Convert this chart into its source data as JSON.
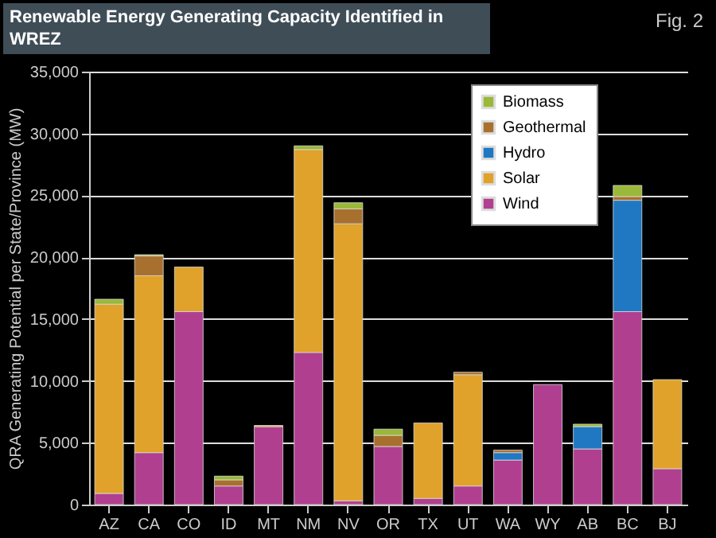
{
  "chart_data": {
    "type": "bar",
    "title": "Renewable Energy Generating Capacity Identified in WREZ",
    "ylabel": "QRA Generating Potential per State/Province (MW)",
    "annotations": [
      "Fig. 2"
    ],
    "categories": [
      "AZ",
      "CA",
      "CO",
      "ID",
      "MT",
      "NM",
      "NV",
      "OR",
      "TX",
      "UT",
      "WA",
      "WY",
      "AB",
      "BC",
      "BJ"
    ],
    "stacked": true,
    "ylim": [
      0,
      35000
    ],
    "yticks": [
      0,
      {
        "value": 5000,
        "label": "5,000"
      },
      {
        "value": 10000,
        "label": "10,000"
      },
      {
        "value": 15000,
        "label": "15,000"
      },
      {
        "value": 20000,
        "label": "20,000"
      },
      {
        "value": 25000,
        "label": "25,000"
      },
      {
        "value": 30000,
        "label": "30,000"
      },
      {
        "value": 35000,
        "label": "35,000"
      }
    ],
    "grid": "y",
    "legend": "top right",
    "series": [
      {
        "name": "Wind",
        "color": "#b0408f",
        "values": [
          900,
          4200,
          15600,
          1500,
          6300,
          12300,
          300,
          4700,
          500,
          1500,
          3600,
          9700,
          4500,
          15600,
          2900
        ]
      },
      {
        "name": "Solar",
        "color": "#e0a22a",
        "values": [
          15300,
          14300,
          3600,
          null,
          100,
          16400,
          22400,
          null,
          6100,
          9000,
          null,
          null,
          null,
          null,
          7200
        ]
      },
      {
        "name": "Hydro",
        "color": "#1f78c1",
        "values": [
          null,
          null,
          null,
          null,
          null,
          null,
          null,
          null,
          null,
          null,
          600,
          null,
          1800,
          9000,
          null
        ]
      },
      {
        "name": "Geothermal",
        "color": "#a8702e",
        "values": [
          null,
          1600,
          null,
          500,
          null,
          null,
          1200,
          900,
          null,
          200,
          200,
          null,
          null,
          300,
          null
        ]
      },
      {
        "name": "Biomass",
        "color": "#9ab83a",
        "values": [
          400,
          100,
          null,
          300,
          null,
          300,
          500,
          500,
          null,
          null,
          null,
          null,
          200,
          900,
          null
        ]
      }
    ]
  }
}
